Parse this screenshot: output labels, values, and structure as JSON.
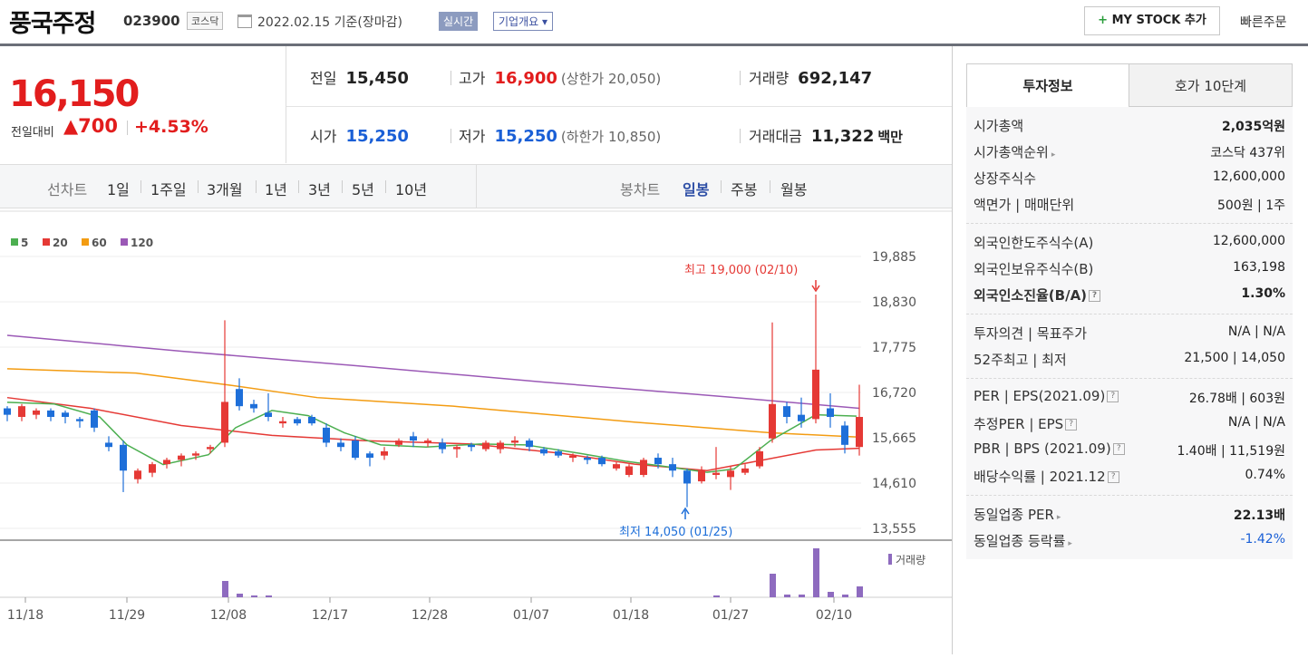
{
  "header": {
    "name": "풍국주정",
    "code": "023900",
    "market": "코스닥",
    "date": "2022.02.15  기준(장마감)",
    "realtime": "실시간",
    "company": "기업개요 ▾",
    "mystock_plus": "+",
    "mystock": "MY STOCK 추가",
    "quick_order": "빠른주문"
  },
  "price": {
    "current": "16,150",
    "prev_label": "전일대비",
    "change": "▲700",
    "change_pct": "+4.53%"
  },
  "stats": {
    "prev": {
      "label": "전일",
      "value": "15,450"
    },
    "high": {
      "label": "고가",
      "value": "16,900",
      "sub": "(상한가 20,050)"
    },
    "volume": {
      "label": "거래량",
      "value": "692,147"
    },
    "open": {
      "label": "시가",
      "value": "15,250"
    },
    "low": {
      "label": "저가",
      "value": "15,250",
      "sub": "(하한가 10,850)"
    },
    "amount": {
      "label": "거래대금",
      "value": "11,322",
      "unit": "백만"
    }
  },
  "period_bar": {
    "line_label": "선차트",
    "periods": [
      "1일",
      "1주일",
      "3개월",
      "1년",
      "3년",
      "5년",
      "10년"
    ],
    "candle_label": "봉차트",
    "candle_types": [
      "일봉",
      "주봉",
      "월봉"
    ],
    "active_candle": "일봉"
  },
  "chart_data": {
    "type": "candlestick",
    "legend": [
      {
        "name": "5",
        "color": "#4caf50"
      },
      {
        "name": "20",
        "color": "#e53935"
      },
      {
        "name": "60",
        "color": "#f39c12"
      },
      {
        "name": "120",
        "color": "#9b59b6"
      }
    ],
    "y_ticks": [
      "19,885",
      "18,830",
      "17,775",
      "16,720",
      "15,665",
      "14,610",
      "13,555"
    ],
    "y_tick_values": [
      19885,
      18830,
      17775,
      16720,
      15665,
      14610,
      13555
    ],
    "ylim": [
      13555,
      19885
    ],
    "x_ticks": [
      "11/18",
      "11/29",
      "12/08",
      "12/17",
      "12/28",
      "01/07",
      "01/18",
      "01/27",
      "02/10"
    ],
    "high_annotation": "최고 19,000 (02/10)",
    "low_annotation": "최저 14,050 (01/25)",
    "volume_label": "거래량",
    "colors": {
      "up": "#e53935",
      "down": "#1e6fd9"
    }
  },
  "sidebar": {
    "tab_active": "투자정보",
    "tab_other": "호가 10단계",
    "sec1": [
      {
        "k": "시가총액",
        "v": "2,035억원",
        "vb": true
      },
      {
        "k": "시가총액순위",
        "arrow": true,
        "v": "코스닥 437위"
      },
      {
        "k": "상장주식수",
        "v": "12,600,000"
      },
      {
        "k": "액면가 | 매매단위",
        "v": "500원 | 1주"
      }
    ],
    "sec2": [
      {
        "k": "외국인한도주식수(A)",
        "v": "12,600,000"
      },
      {
        "k": "외국인보유주식수(B)",
        "v": "163,198"
      },
      {
        "k": "외국인소진율(B/A)",
        "q": true,
        "v": "1.30%",
        "kb": true,
        "vb": true
      }
    ],
    "sec3": [
      {
        "k": "투자의견 | 목표주가",
        "v": "N/A | N/A"
      },
      {
        "k": "52주최고 | 최저",
        "v": "21,500 | 14,050"
      }
    ],
    "sec4": [
      {
        "k": "PER | EPS(2021.09)",
        "q": true,
        "v": "26.78배 | 603원"
      },
      {
        "k": "추정PER | EPS",
        "q": true,
        "v": "N/A | N/A"
      },
      {
        "k": "PBR | BPS (2021.09)",
        "q": true,
        "v": "1.40배 | 11,519원"
      },
      {
        "k": "배당수익률 | 2021.12",
        "q": true,
        "v": "0.74%"
      }
    ],
    "sec5": [
      {
        "k": "동일업종 PER",
        "arrow": true,
        "v": "22.13배",
        "vb": true
      },
      {
        "k": "동일업종 등락률",
        "arrow": true,
        "v": "-1.42%",
        "vblue": true
      }
    ]
  }
}
